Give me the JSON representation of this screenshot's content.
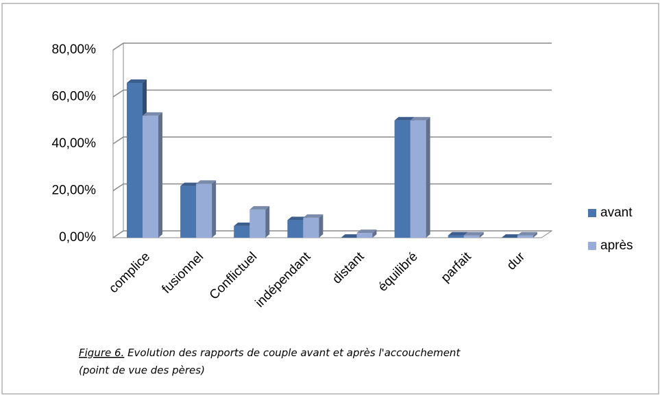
{
  "chart_data": {
    "type": "bar3d",
    "categories": [
      "complice",
      "fusionnel",
      "Conflictuel",
      "indépendant",
      "distant",
      "équilibré",
      "parfait",
      "dur"
    ],
    "series": [
      {
        "name": "avant",
        "color": "#4a76b0",
        "values": [
          66,
          22,
          5,
          7.5,
          0,
          50,
          1,
          0
        ]
      },
      {
        "name": "après",
        "color": "#97acd6",
        "values": [
          52,
          23,
          12,
          8.5,
          2,
          50,
          1,
          1
        ]
      }
    ],
    "ylim": [
      0,
      80
    ],
    "yticks": [
      {
        "value": 0,
        "label": "0,00%"
      },
      {
        "value": 20,
        "label": "20,00%"
      },
      {
        "value": 40,
        "label": "40,00%"
      },
      {
        "value": 60,
        "label": "60,00%"
      },
      {
        "value": 80,
        "label": "80,00%"
      }
    ],
    "grid": true,
    "legend": "right",
    "caption": {
      "label": "Figure 6.",
      "text": " Evolution des rapports de couple avant et après l'accouchement",
      "text2": "(point de vue des pères)"
    }
  }
}
